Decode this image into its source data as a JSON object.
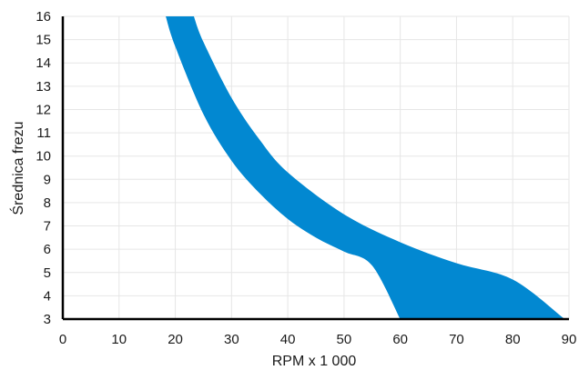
{
  "chart_data": {
    "type": "area",
    "title": "",
    "xlabel": "RPM x 1 000",
    "ylabel": "Średnica frezu",
    "xlim": [
      0,
      90
    ],
    "ylim": [
      3,
      16
    ],
    "x_ticks": [
      0,
      10,
      20,
      30,
      40,
      50,
      60,
      70,
      80,
      90
    ],
    "y_ticks": [
      3,
      4,
      5,
      6,
      7,
      8,
      9,
      10,
      11,
      12,
      13,
      14,
      15,
      16
    ],
    "grid": true,
    "color": "#0288d1",
    "series": [
      {
        "role": "band-upper",
        "points": [
          [
            23.3,
            16
          ],
          [
            25,
            14.9
          ],
          [
            30,
            12.5
          ],
          [
            35,
            10.7
          ],
          [
            40,
            9.3
          ],
          [
            50,
            7.5
          ],
          [
            60,
            6.3
          ],
          [
            70,
            5.4
          ],
          [
            80,
            4.7
          ],
          [
            89,
            3.05
          ]
        ]
      },
      {
        "role": "band-lower",
        "points": [
          [
            18.3,
            16
          ],
          [
            20,
            14.7
          ],
          [
            25,
            11.8
          ],
          [
            30,
            9.8
          ],
          [
            35,
            8.4
          ],
          [
            40,
            7.3
          ],
          [
            45,
            6.5
          ],
          [
            50,
            5.9
          ],
          [
            55,
            5.3
          ],
          [
            60,
            3.0
          ]
        ]
      }
    ]
  }
}
